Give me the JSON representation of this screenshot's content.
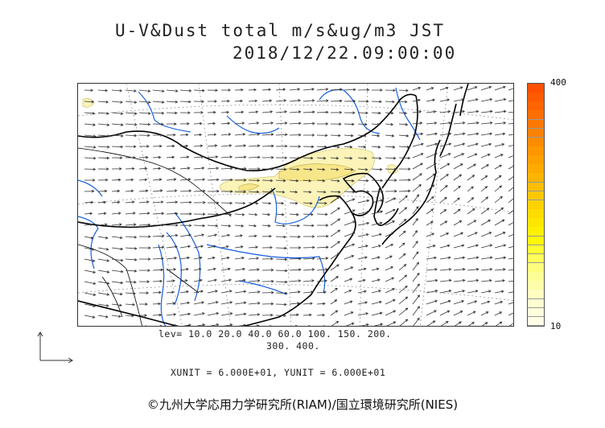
{
  "title": {
    "line1": "U-V&Dust total m/s&ug/m3 JST",
    "line2": "2018/12/22.09:00:00"
  },
  "colorbar": {
    "max_label": "400",
    "min_label": "10",
    "colors": [
      "#fefee6",
      "#fefedc",
      "#fefed0",
      "#fefec0",
      "#fefeaa",
      "#fefe96",
      "#fefe7d",
      "#fefe5a",
      "#fefe32",
      "#fef80a",
      "#fef000",
      "#fee600",
      "#fedc00",
      "#fed200",
      "#fec800",
      "#febe00",
      "#feb400",
      "#feaa00",
      "#fea000",
      "#fe9600",
      "#fe8c00",
      "#fe8200",
      "#fe7800",
      "#fe6e00",
      "#fe6400",
      "#fe5a00",
      "#fe5000"
    ]
  },
  "levels": {
    "line1": "lev= 10.0 20.0 40.0 60.0 100. 150. 200.",
    "line2": "300. 400."
  },
  "units": {
    "text": "XUNIT = 6.000E+01, YUNIT = 6.000E+01"
  },
  "credit": {
    "text": "©九州大学応用力学研究所(RIAM)/国立環境研究所(NIES)"
  },
  "map": {
    "coast_color": "#000000",
    "river_color": "#1a5fe0",
    "grid_color": "#888888",
    "dust_light": "#fbf3b8",
    "dust_mid": "#f8e68a",
    "arrow_color": "#333333"
  }
}
